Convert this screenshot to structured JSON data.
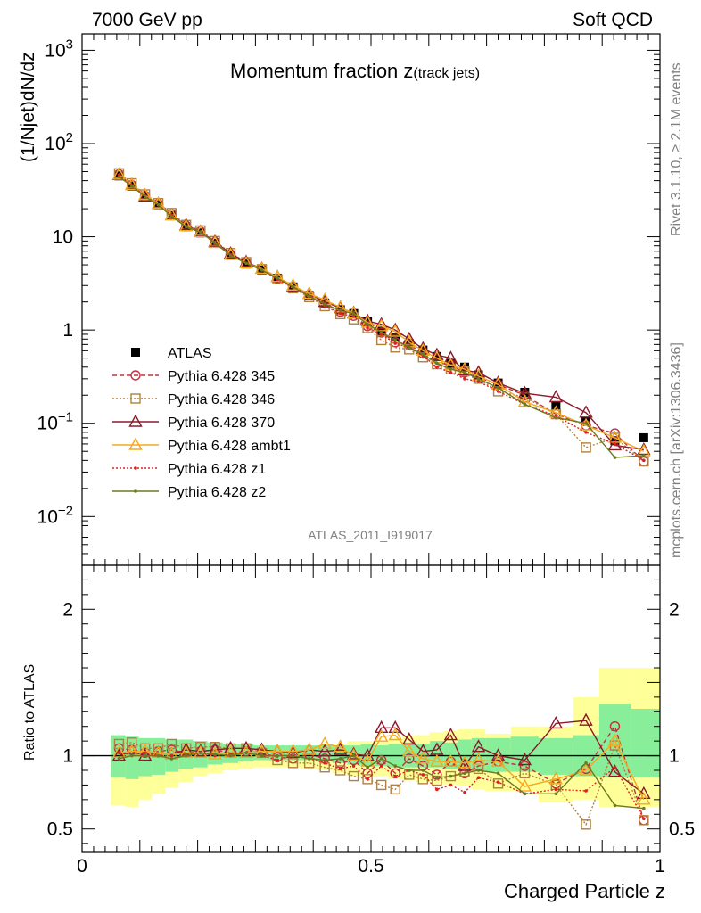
{
  "header": {
    "left": "7000 GeV pp",
    "right": "Soft QCD"
  },
  "side": {
    "rivet": "Rivet 3.1.10, ≥ 2.1M events",
    "site": "mcplots.cern.ch [arXiv:1306.3436]"
  },
  "watermark": "ATLAS_2011_I919017",
  "chart_data": [
    {
      "type": "scatter",
      "title": "Momentum fraction z",
      "title_sub": "(track jets)",
      "ylabel": "(1/Njet)dN/dz",
      "yscale": "log",
      "xlim": [
        0,
        1
      ],
      "ylim": [
        0.003,
        1500
      ],
      "ytick_values": [
        0.01,
        0.1,
        1,
        10,
        100,
        1000
      ],
      "ytick_labels": [
        {
          "base": "10",
          "exp": "−2"
        },
        {
          "base": "10",
          "exp": "−1"
        },
        {
          "base": "1",
          "exp": ""
        },
        {
          "base": "10",
          "exp": ""
        },
        {
          "base": "10",
          "exp": "2"
        },
        {
          "base": "10",
          "exp": "3"
        }
      ],
      "x": [
        0.064,
        0.086,
        0.109,
        0.132,
        0.155,
        0.18,
        0.205,
        0.23,
        0.257,
        0.284,
        0.311,
        0.338,
        0.365,
        0.393,
        0.42,
        0.447,
        0.47,
        0.494,
        0.518,
        0.542,
        0.566,
        0.59,
        0.614,
        0.638,
        0.662,
        0.686,
        0.72,
        0.766,
        0.82,
        0.872,
        0.922,
        0.972
      ],
      "series": [
        {
          "name": "ATLAS",
          "style": "data",
          "color": "#000000",
          "values": [
            45,
            35,
            27,
            22,
            16.8,
            12.8,
            11,
            8.5,
            6.3,
            5.1,
            4.4,
            3.6,
            2.9,
            2.35,
            1.95,
            1.65,
            1.5,
            1.25,
            0.97,
            0.84,
            0.72,
            0.61,
            0.52,
            0.44,
            0.4,
            0.33,
            0.27,
            0.215,
            0.155,
            0.105,
            0.065,
            0.07
          ]
        },
        {
          "name": "Pythia 6.428 345",
          "style": "circle-dash",
          "color": "#c03040",
          "values": [
            47,
            36,
            27.5,
            22.5,
            17.5,
            13.2,
            11.4,
            8.8,
            6.5,
            5.3,
            4.5,
            3.55,
            2.85,
            2.38,
            1.92,
            1.57,
            1.42,
            1.1,
            0.94,
            0.74,
            0.7,
            0.56,
            0.45,
            0.42,
            0.35,
            0.31,
            0.26,
            0.2,
            0.125,
            0.095,
            0.078,
            0.039
          ]
        },
        {
          "name": "Pythia 6.428 346",
          "style": "square-dot",
          "color": "#b08040",
          "values": [
            48,
            37.5,
            28.5,
            23,
            18,
            13.4,
            11.7,
            9,
            6.7,
            5.35,
            4.5,
            3.5,
            2.8,
            2.25,
            1.8,
            1.48,
            1.3,
            1.05,
            0.78,
            0.65,
            0.62,
            0.51,
            0.43,
            0.38,
            0.36,
            0.3,
            0.22,
            0.19,
            0.125,
            0.055,
            0.07,
            0.039
          ]
        },
        {
          "name": "Pythia 6.428 370",
          "style": "triangle-solid",
          "color": "#8b1a2b",
          "values": [
            46,
            36,
            27,
            22.5,
            17,
            13.3,
            11.3,
            8.8,
            6.6,
            5.35,
            4.55,
            3.7,
            2.95,
            2.45,
            2.0,
            1.72,
            1.52,
            1.25,
            1.15,
            1.0,
            0.8,
            0.63,
            0.54,
            0.5,
            0.37,
            0.35,
            0.27,
            0.21,
            0.19,
            0.13,
            0.058,
            0.052
          ]
        },
        {
          "name": "Pythia 6.428 ambt1",
          "style": "triangle-solid",
          "color": "#f5a820",
          "values": [
            46.5,
            36,
            28,
            22.5,
            17,
            13,
            11.2,
            8.6,
            6.4,
            5.2,
            4.55,
            3.7,
            3.0,
            2.45,
            2.1,
            1.75,
            1.5,
            1.2,
            1.1,
            0.96,
            0.74,
            0.6,
            0.5,
            0.42,
            0.38,
            0.32,
            0.26,
            0.17,
            0.13,
            0.095,
            0.07,
            0.05
          ]
        },
        {
          "name": "Pythia 6.428 z1",
          "style": "dot-dot",
          "color": "#e02020",
          "values": [
            46,
            35.5,
            27.5,
            22,
            16.8,
            12.8,
            11.2,
            8.5,
            6.4,
            5.2,
            4.4,
            3.5,
            2.9,
            2.3,
            1.85,
            1.5,
            1.4,
            1.05,
            0.9,
            0.72,
            0.65,
            0.53,
            0.4,
            0.35,
            0.3,
            0.28,
            0.22,
            0.16,
            0.12,
            0.08,
            0.06,
            0.04
          ]
        },
        {
          "name": "Pythia 6.428 z2",
          "style": "dot-solid",
          "color": "#6b7a20",
          "values": [
            44,
            35,
            27,
            22,
            16.5,
            12.8,
            11.2,
            8.6,
            6.3,
            5.2,
            4.4,
            3.6,
            2.9,
            2.3,
            1.9,
            1.62,
            1.5,
            1.15,
            0.95,
            0.78,
            0.65,
            0.55,
            0.44,
            0.38,
            0.35,
            0.3,
            0.24,
            0.16,
            0.115,
            0.1,
            0.043,
            0.045
          ]
        }
      ]
    },
    {
      "type": "scatter",
      "xlabel": "Charged Particle z",
      "ylabel": "Ratio to ATLAS",
      "xlim": [
        0,
        1
      ],
      "ylim": [
        0.34,
        2.3
      ],
      "xtick_values": [
        0,
        0.5,
        1
      ],
      "xtick_labels": [
        "0",
        "0.5",
        "1"
      ],
      "ytick_values": [
        0.5,
        1,
        2
      ],
      "ytick_labels": [
        "0.5",
        "1",
        "2"
      ],
      "band_edges": [
        0.05,
        0.075,
        0.098,
        0.121,
        0.144,
        0.167,
        0.192,
        0.217,
        0.243,
        0.27,
        0.297,
        0.324,
        0.352,
        0.379,
        0.406,
        0.433,
        0.459,
        0.482,
        0.506,
        0.53,
        0.554,
        0.578,
        0.602,
        0.626,
        0.65,
        0.674,
        0.698,
        0.742,
        0.79,
        0.85,
        0.895,
        0.95,
        1.0
      ],
      "band_green": [
        [
          0.85,
          1.14
        ],
        [
          0.84,
          1.13
        ],
        [
          0.86,
          1.12
        ],
        [
          0.87,
          1.12
        ],
        [
          0.89,
          1.11
        ],
        [
          0.91,
          1.11
        ],
        [
          0.92,
          1.1
        ],
        [
          0.94,
          1.09
        ],
        [
          0.95,
          1.08
        ],
        [
          0.96,
          1.08
        ],
        [
          0.97,
          1.07
        ],
        [
          0.97,
          1.07
        ],
        [
          0.97,
          1.07
        ],
        [
          0.97,
          1.07
        ],
        [
          0.96,
          1.07
        ],
        [
          0.95,
          1.07
        ],
        [
          0.94,
          1.07
        ],
        [
          0.93,
          1.08
        ],
        [
          0.93,
          1.07
        ],
        [
          0.92,
          1.08
        ],
        [
          0.92,
          1.09
        ],
        [
          0.92,
          1.08
        ],
        [
          0.92,
          1.1
        ],
        [
          0.91,
          1.09
        ],
        [
          0.9,
          1.11
        ],
        [
          0.9,
          1.12
        ],
        [
          0.89,
          1.12
        ],
        [
          0.89,
          1.13
        ],
        [
          0.87,
          1.12
        ],
        [
          0.86,
          1.14
        ],
        [
          0.85,
          1.35
        ],
        [
          0.85,
          1.32
        ]
      ],
      "band_yellow": [
        [
          0.66,
          1.13
        ],
        [
          0.65,
          1.11
        ],
        [
          0.7,
          1.12
        ],
        [
          0.74,
          1.11
        ],
        [
          0.78,
          1.1
        ],
        [
          0.82,
          1.1
        ],
        [
          0.86,
          1.09
        ],
        [
          0.88,
          1.08
        ],
        [
          0.9,
          1.08
        ],
        [
          0.91,
          1.07
        ],
        [
          0.92,
          1.06
        ],
        [
          0.92,
          1.06
        ],
        [
          0.92,
          1.06
        ],
        [
          0.91,
          1.06
        ],
        [
          0.9,
          1.07
        ],
        [
          0.88,
          1.08
        ],
        [
          0.86,
          1.1
        ],
        [
          0.85,
          1.1
        ],
        [
          0.86,
          1.1
        ],
        [
          0.84,
          1.12
        ],
        [
          0.83,
          1.14
        ],
        [
          0.82,
          1.14
        ],
        [
          0.81,
          1.16
        ],
        [
          0.8,
          1.17
        ],
        [
          0.79,
          1.18
        ],
        [
          0.77,
          1.18
        ],
        [
          0.76,
          1.15
        ],
        [
          0.76,
          1.2
        ],
        [
          0.68,
          1.2
        ],
        [
          0.7,
          1.4
        ],
        [
          0.65,
          1.6
        ],
        [
          0.65,
          1.6
        ]
      ],
      "series": [
        {
          "name": "Pythia 6.428 345",
          "values": [
            1.05,
            1.04,
            1.02,
            1.03,
            1.04,
            1.02,
            1.03,
            1.04,
            1.02,
            1.03,
            1.02,
            0.99,
            0.98,
            1.01,
            0.98,
            0.95,
            0.97,
            0.88,
            0.97,
            0.88,
            0.98,
            0.93,
            0.87,
            0.96,
            0.88,
            0.93,
            0.96,
            0.93,
            0.81,
            0.91,
            1.2,
            0.56
          ]
        },
        {
          "name": "Pythia 6.428 346",
          "values": [
            1.08,
            1.09,
            1.05,
            1.05,
            1.08,
            1.05,
            1.06,
            1.06,
            1.05,
            1.05,
            1.02,
            0.97,
            0.95,
            0.95,
            0.92,
            0.9,
            0.86,
            0.84,
            0.8,
            0.77,
            0.87,
            0.84,
            0.83,
            0.86,
            0.89,
            0.91,
            0.81,
            0.88,
            0.8,
            0.53,
            1.07,
            0.56
          ]
        },
        {
          "name": "Pythia 6.428 370",
          "values": [
            1.0,
            1.03,
            1.0,
            1.02,
            1.01,
            1.04,
            1.03,
            1.04,
            1.05,
            1.05,
            1.04,
            1.03,
            1.02,
            1.04,
            1.03,
            1.04,
            1.01,
            1.0,
            1.19,
            1.19,
            1.11,
            1.03,
            1.04,
            1.14,
            0.93,
            1.06,
            1.0,
            0.97,
            1.22,
            1.24,
            0.89,
            0.74
          ]
        },
        {
          "name": "Pythia 6.428 ambt1",
          "values": [
            1.02,
            1.03,
            1.03,
            1.02,
            1.01,
            1.02,
            1.02,
            1.01,
            1.02,
            1.02,
            1.03,
            1.03,
            1.03,
            1.04,
            1.08,
            1.06,
            1.0,
            0.96,
            1.13,
            1.14,
            1.03,
            0.98,
            0.96,
            0.96,
            0.95,
            0.97,
            0.96,
            0.79,
            0.84,
            0.9,
            1.1,
            0.7
          ]
        },
        {
          "name": "Pythia 6.428 z1",
          "values": [
            1.02,
            1.01,
            1.02,
            1.0,
            1.0,
            1.0,
            1.02,
            1.0,
            1.01,
            1.02,
            1.0,
            0.97,
            1.0,
            0.98,
            0.95,
            0.91,
            0.93,
            0.84,
            0.93,
            0.86,
            0.9,
            0.87,
            0.77,
            0.8,
            0.75,
            0.85,
            0.82,
            0.74,
            0.77,
            0.76,
            0.92,
            0.57
          ]
        },
        {
          "name": "Pythia 6.428 z2",
          "values": [
            0.98,
            1.0,
            1.0,
            1.0,
            0.98,
            1.0,
            1.02,
            1.01,
            1.0,
            1.02,
            1.0,
            1.0,
            1.0,
            0.98,
            0.97,
            0.98,
            1.0,
            0.92,
            0.98,
            0.93,
            0.9,
            0.9,
            0.85,
            0.86,
            0.88,
            0.9,
            0.88,
            0.74,
            0.74,
            0.95,
            0.66,
            0.64
          ]
        }
      ]
    }
  ]
}
